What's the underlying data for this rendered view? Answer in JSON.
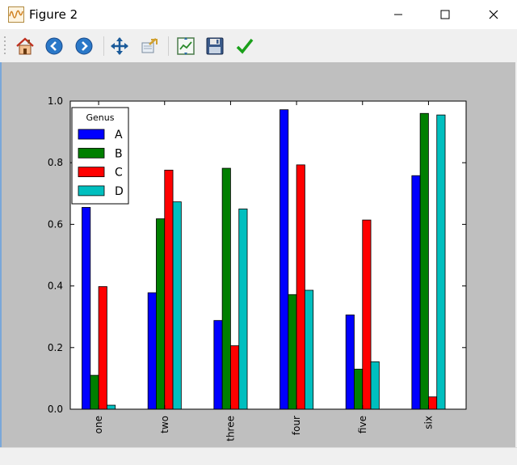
{
  "window": {
    "title": "Figure 2",
    "controls": {
      "minimize": "minimize",
      "maximize": "maximize",
      "close": "close"
    }
  },
  "toolbar": {
    "buttons": [
      {
        "name": "home-icon",
        "tooltip": "Home"
      },
      {
        "name": "back-icon",
        "tooltip": "Back"
      },
      {
        "name": "forward-icon",
        "tooltip": "Forward"
      },
      {
        "name": "pan-icon",
        "tooltip": "Pan"
      },
      {
        "name": "zoom-icon",
        "tooltip": "Zoom"
      },
      {
        "name": "subplots-icon",
        "tooltip": "Configure subplots"
      },
      {
        "name": "save-icon",
        "tooltip": "Save"
      },
      {
        "name": "edit-check-icon",
        "tooltip": "Edit parameters"
      }
    ]
  },
  "colors": {
    "A": "#0000ff",
    "B": "#007f00",
    "C": "#ff0000",
    "D": "#00bfbf",
    "canvas_bg": "#bfbfbf"
  },
  "chart_data": {
    "type": "bar",
    "categories": [
      "one",
      "two",
      "three",
      "four",
      "five",
      "six"
    ],
    "series": [
      {
        "name": "A",
        "values": [
          0.655,
          0.378,
          0.288,
          0.972,
          0.306,
          0.758
        ]
      },
      {
        "name": "B",
        "values": [
          0.11,
          0.618,
          0.782,
          0.372,
          0.13,
          0.96
        ]
      },
      {
        "name": "C",
        "values": [
          0.398,
          0.776,
          0.206,
          0.793,
          0.614,
          0.04
        ]
      },
      {
        "name": "D",
        "values": [
          0.013,
          0.673,
          0.65,
          0.386,
          0.154,
          0.955
        ]
      }
    ],
    "ylim": [
      0,
      1.0
    ],
    "yticks": [
      "0.0",
      "0.2",
      "0.4",
      "0.6",
      "0.8",
      "1.0"
    ],
    "legend": {
      "title": "Genus",
      "placement": "top-left"
    },
    "grid": false
  }
}
